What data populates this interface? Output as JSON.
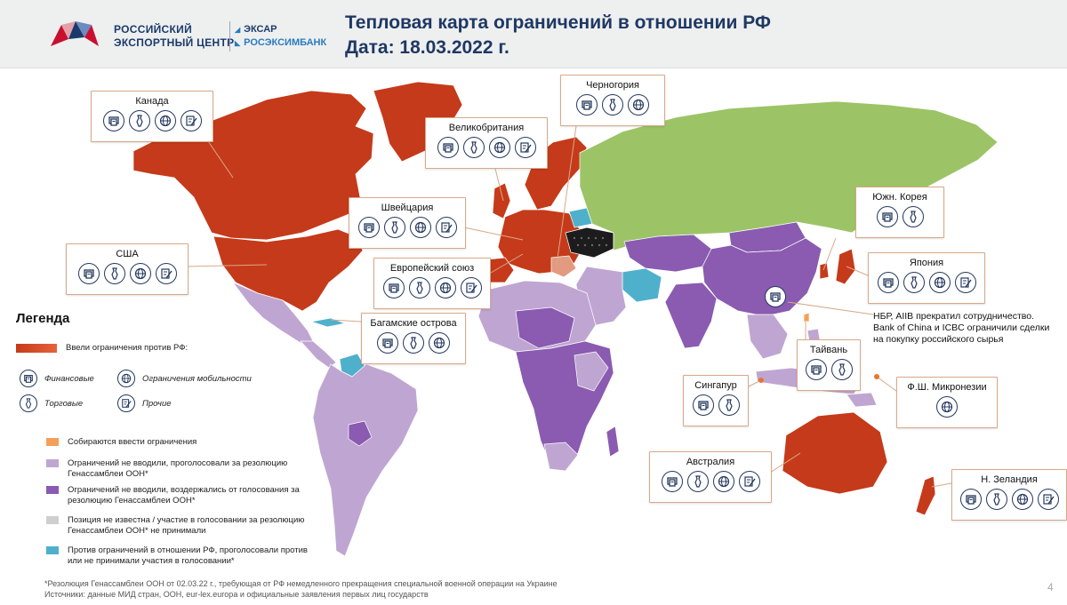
{
  "header": {
    "org_line1": "РОССИЙСКИЙ",
    "org_line2": "ЭКСПОРТНЫЙ ЦЕНТР",
    "partner1": "ЭКСАР",
    "partner2": "РОСЭКСИМБАНК",
    "title_line1": "Тепловая карта ограничений в отношении РФ",
    "title_line2": "Дата: 18.03.2022 г."
  },
  "colors": {
    "imposed": "#c53a1a",
    "preparing": "#f4a05a",
    "voted_for": "#bfa6d2",
    "abstained": "#8a5bb0",
    "unknown": "#cfcfcf",
    "against": "#4fb0cc",
    "russia": "#9cc466",
    "accent_title": "#1f3864"
  },
  "callouts": [
    {
      "name": "Канада",
      "icons": [
        "financial-icon",
        "trade-icon",
        "mobility-icon",
        "other-icon"
      ]
    },
    {
      "name": "США",
      "icons": [
        "financial-icon",
        "trade-icon",
        "mobility-icon",
        "other-icon"
      ]
    },
    {
      "name": "Великобритания",
      "icons": [
        "financial-icon",
        "trade-icon",
        "mobility-icon",
        "other-icon"
      ]
    },
    {
      "name": "Черногория",
      "icons": [
        "financial-icon",
        "trade-icon",
        "mobility-icon"
      ]
    },
    {
      "name": "Швейцария",
      "icons": [
        "financial-icon",
        "trade-icon",
        "mobility-icon",
        "other-icon"
      ]
    },
    {
      "name": "Европейский союз",
      "icons": [
        "financial-icon",
        "trade-icon",
        "mobility-icon",
        "other-icon"
      ]
    },
    {
      "name": "Багамские острова",
      "icons": [
        "financial-icon",
        "trade-icon",
        "mobility-icon"
      ]
    },
    {
      "name": "Южн. Корея",
      "icons": [
        "financial-icon",
        "trade-icon"
      ]
    },
    {
      "name": "Япония",
      "icons": [
        "financial-icon",
        "trade-icon",
        "mobility-icon",
        "other-icon"
      ]
    },
    {
      "name": "Тайвань",
      "icons": [
        "financial-icon",
        "trade-icon"
      ]
    },
    {
      "name": "Сингапур",
      "icons": [
        "financial-icon",
        "trade-icon"
      ]
    },
    {
      "name": "Ф.Ш. Микронезии",
      "icons": [
        "mobility-icon"
      ]
    },
    {
      "name": "Австралия",
      "icons": [
        "financial-icon",
        "trade-icon",
        "mobility-icon",
        "other-icon"
      ]
    },
    {
      "name": "Н. Зеландия",
      "icons": [
        "financial-icon",
        "trade-icon",
        "mobility-icon",
        "other-icon"
      ]
    }
  ],
  "china_note": "НБР, AIIB прекратил сотрудничество. Bank of China и ICBC ограничили сделки на покупку российского сырья",
  "legend": {
    "title": "Легенда",
    "imposed": "Ввели ограничения против РФ:",
    "financial": "Финансовые",
    "mobility": "Ограничения мобильности",
    "trade": "Торговые",
    "other": "Прочие",
    "preparing": "Собираются ввести ограничения",
    "voted_for": "Ограничений не вводили, проголосовали за резолюцию Генассамблеи ООН*",
    "abstained": "Ограничений не вводили, воздержались от голосования за резолюцию Генассамблеи ООН*",
    "unknown": "Позиция не известна / участие в голосовании за резолюцию Генассамблеи ООН* не принимали",
    "against": "Против ограничений в отношении РФ, проголосовали против или не принимали участия в голосовании*"
  },
  "footnote_line1": "*Резолюция Генассамблеи ООН от 02.03.22 г., требующая от РФ немедленного прекращения специальной военной операции на Украине",
  "footnote_line2": "Источники: данные МИД стран, ООН, eur-lex.europa и официальные заявления первых лиц государств",
  "page_number": "4"
}
